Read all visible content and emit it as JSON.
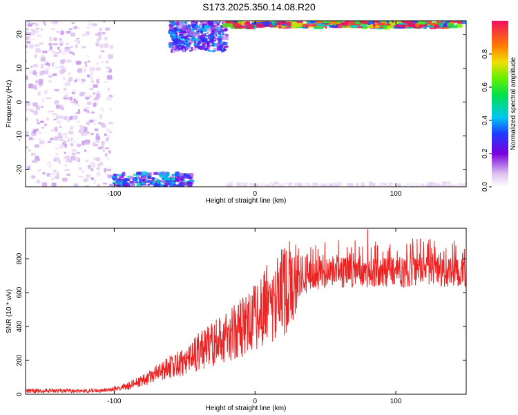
{
  "title": "S173.2025.350.14.08.R20",
  "chart_data": [
    {
      "type": "heatmap",
      "xlabel": "Height of straight line (km)",
      "ylabel": "Frequency (Hz)",
      "xlim": [
        -163,
        150
      ],
      "ylim": [
        -25,
        24
      ],
      "x_ticks": [
        -100,
        0,
        100
      ],
      "y_ticks": [
        -20,
        -10,
        0,
        10,
        20
      ],
      "colorbar": {
        "label": "Normalized spectral amplitude",
        "range": [
          0.0,
          1.0
        ],
        "ticks": [
          0.0,
          0.2,
          0.4,
          0.6,
          0.8
        ]
      },
      "regions": [
        {
          "x": [
            -163,
            -102
          ],
          "y": [
            -25,
            24
          ],
          "amplitude": 0.08,
          "desc": "broad noise"
        },
        {
          "x": [
            -100,
            -45
          ],
          "y": [
            -25,
            -21
          ],
          "amplitude": 0.35
        },
        {
          "x": [
            -60,
            -20
          ],
          "y": [
            15,
            24
          ],
          "amplitude": 0.3
        },
        {
          "x": [
            -20,
            150
          ],
          "y": [
            22,
            24
          ],
          "amplitude": 0.85
        },
        {
          "x": [
            -20,
            150
          ],
          "y": [
            -25,
            -24
          ],
          "amplitude": 0.05
        }
      ]
    },
    {
      "type": "line",
      "xlabel": "Height of straight line (km)",
      "ylabel": "SNR (10 * v/v)",
      "xlim": [
        -163,
        150
      ],
      "ylim": [
        0,
        980
      ],
      "x_ticks": [
        -100,
        0,
        100
      ],
      "y_ticks": [
        0,
        200,
        400,
        600,
        800
      ],
      "color": "#ee2222",
      "trend": {
        "x": [
          -163,
          -110,
          -100,
          -90,
          -80,
          -70,
          -60,
          -50,
          -40,
          -30,
          -20,
          -10,
          0,
          10,
          20,
          30,
          40,
          60,
          80,
          100,
          120,
          150
        ],
        "y": [
          20,
          20,
          30,
          50,
          80,
          120,
          160,
          200,
          250,
          300,
          340,
          390,
          460,
          540,
          600,
          660,
          700,
          720,
          720,
          720,
          720,
          720
        ]
      },
      "peak": {
        "x": 80,
        "y": 975
      }
    }
  ]
}
